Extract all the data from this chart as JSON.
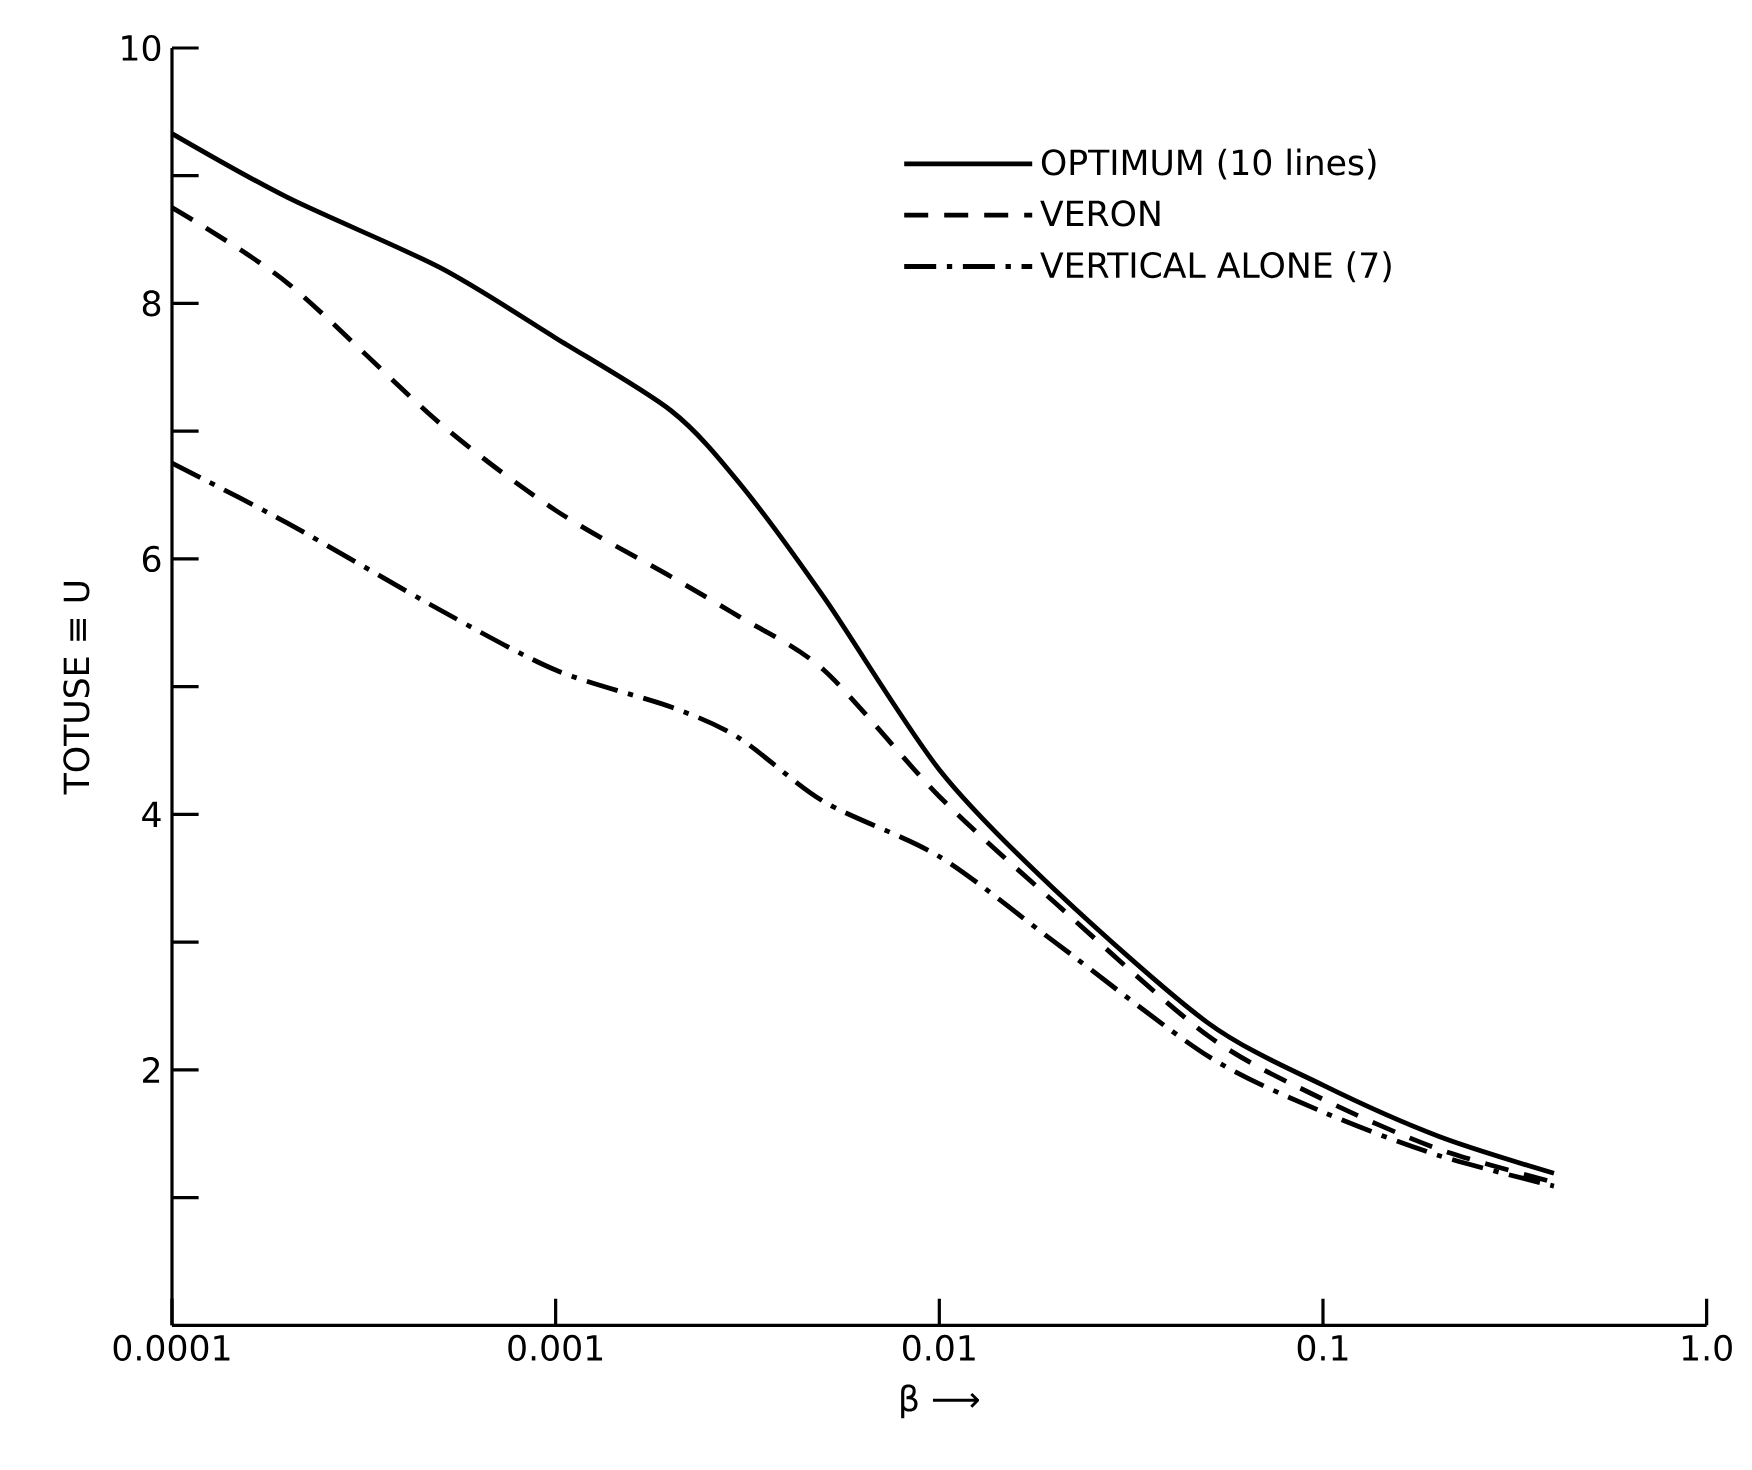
{
  "chart_data": {
    "type": "line",
    "xlabel": "β ⟶",
    "ylabel": "TOTUSE ≡ U",
    "log": "x",
    "xlim": [
      0.0001,
      1
    ],
    "ylim": [
      0,
      10
    ],
    "xticks": [
      {
        "value": 0.0001,
        "label": "0.0001"
      },
      {
        "value": 0.001,
        "label": "0.001"
      },
      {
        "value": 0.01,
        "label": "0.01"
      },
      {
        "value": 0.1,
        "label": "0.1"
      },
      {
        "value": 1,
        "label": "1.0"
      }
    ],
    "yticks": [
      {
        "value": 1,
        "label": null
      },
      2,
      {
        "value": 3,
        "label": null
      },
      4,
      {
        "value": 5,
        "label": null
      },
      6,
      {
        "value": 7,
        "label": null
      },
      8,
      {
        "value": 9,
        "label": null
      },
      10
    ],
    "legend": "top right",
    "x": [
      0.0001,
      0.0002,
      0.0005,
      0.001,
      0.002,
      0.003,
      0.005,
      0.01,
      0.02,
      0.05,
      0.1,
      0.2,
      0.4
    ],
    "series": [
      {
        "name": "OPTIMUM (10 lines)",
        "color": "#000000",
        "line_style": "solid",
        "values": [
          9.33,
          8.83,
          8.28,
          7.73,
          7.16,
          6.6,
          5.7,
          4.35,
          3.41,
          2.37,
          1.88,
          1.48,
          1.19
        ]
      },
      {
        "name": "VERON",
        "color": "#000000",
        "line_style": "dashed",
        "values": [
          8.75,
          8.16,
          7.06,
          6.38,
          5.86,
          5.55,
          5.13,
          4.14,
          3.31,
          2.27,
          1.77,
          1.38,
          1.12
        ]
      },
      {
        "name": "VERTICAL ALONE (7)",
        "color": "#000000",
        "line_style": "dashdot",
        "values": [
          6.75,
          6.28,
          5.6,
          5.13,
          4.84,
          4.6,
          4.1,
          3.67,
          3.0,
          2.11,
          1.67,
          1.33,
          1.09
        ]
      }
    ]
  }
}
